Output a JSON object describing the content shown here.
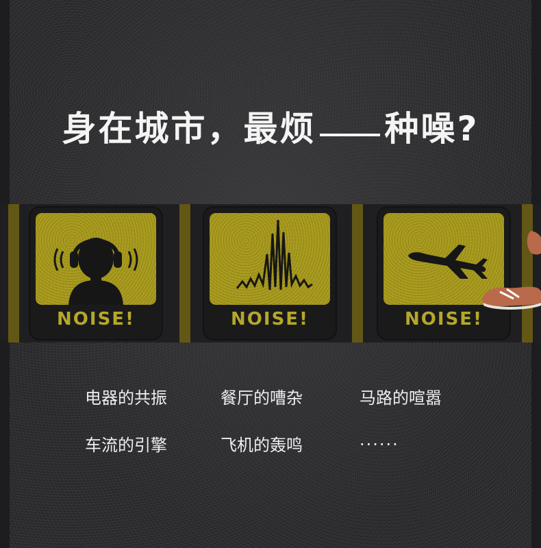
{
  "title": {
    "part1": "身在城市，最烦",
    "part2": "种噪?"
  },
  "signs": [
    {
      "icon": "headphones-person-icon",
      "label": "NOISE!"
    },
    {
      "icon": "sound-wave-icon",
      "label": "NOISE!"
    },
    {
      "icon": "airplane-icon",
      "label": "NOISE!"
    }
  ],
  "noises": [
    "电器的共振",
    "餐厅的嘈杂",
    "马路的喧嚣",
    "车流的引擎",
    "飞机的轰鸣",
    "......"
  ],
  "colors": {
    "sign_yellow": "#a89a1c",
    "text_light": "#ededed",
    "asphalt": "#2a2a2c"
  }
}
